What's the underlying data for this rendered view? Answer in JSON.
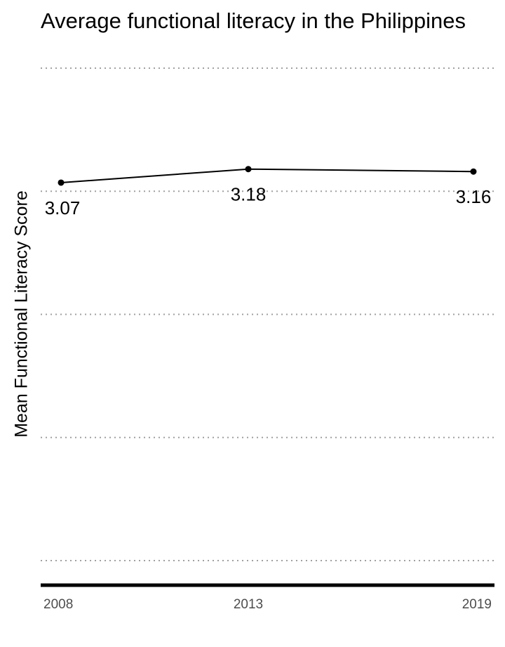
{
  "chart_data": {
    "type": "line",
    "title": "Average functional literacy in the Philippines",
    "xlabel": "",
    "ylabel": "Mean Functional Literacy Score",
    "categories": [
      "2008",
      "2013",
      "2019"
    ],
    "series": [
      {
        "values": [
          3.07,
          3.18,
          3.16
        ]
      }
    ],
    "data_labels": [
      "3.07",
      "3.18",
      "3.16"
    ],
    "ylim": [
      -0.2,
      4.0
    ],
    "gridlines_y": [
      0,
      1,
      2,
      3,
      4
    ],
    "grid": "horizontal dotted",
    "colors": {
      "line": "#000000",
      "grid": "#a0a0a0",
      "axis": "#000000",
      "tick_text": "#4d4d4d"
    }
  }
}
